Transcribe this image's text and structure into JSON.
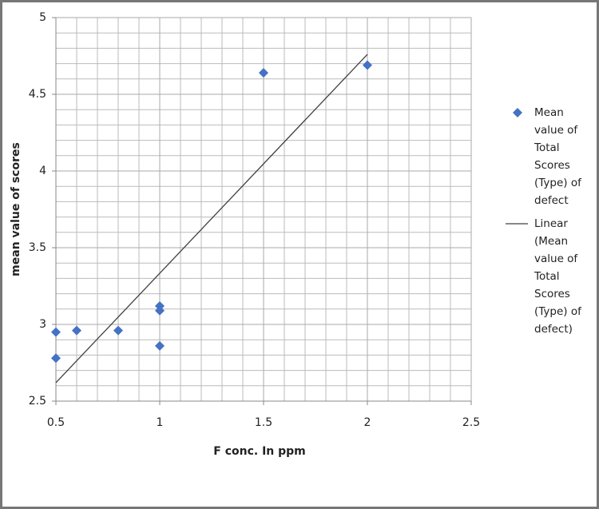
{
  "chart_data": {
    "type": "scatter",
    "x_label": "F conc. In ppm",
    "y_label": "mean value of scores",
    "series": [
      {
        "name": "Mean value of Total Scores (Type) of defect",
        "color": "#4472c4",
        "x": [
          0.5,
          0.5,
          0.6,
          0.8,
          1,
          1,
          1,
          1.5,
          2
        ],
        "values": [
          2.95,
          2.78,
          2.96,
          2.96,
          3.12,
          3.09,
          2.86,
          4.64,
          4.69
        ]
      },
      {
        "name": "Linear (Mean value of Total Scores (Type) of defect)",
        "color": "#404040",
        "type": "line",
        "x": [
          0.5,
          2
        ],
        "values": [
          2.62,
          4.76
        ]
      }
    ],
    "xlim": [
      0.5,
      2.5
    ],
    "xticks": [
      0.5,
      1,
      1.5,
      2,
      2.5
    ],
    "ylim": [
      2.5,
      5
    ],
    "yticks": [
      2.5,
      3,
      3.5,
      4,
      4.5,
      5
    ],
    "grid": true
  }
}
